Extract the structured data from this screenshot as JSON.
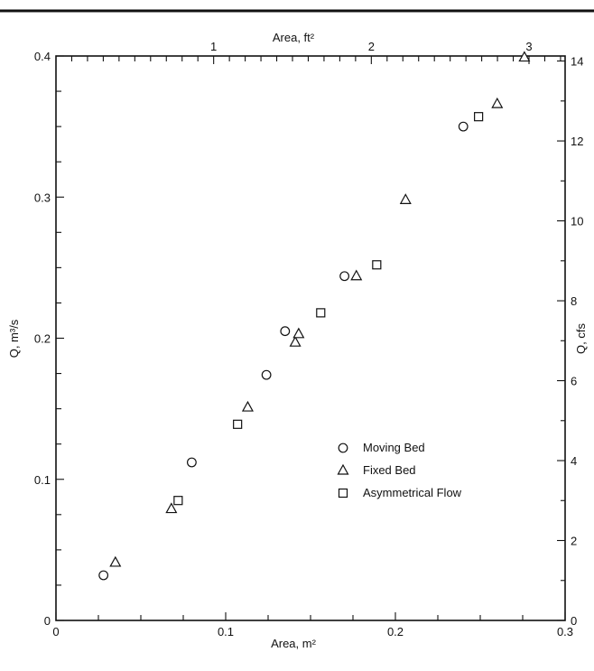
{
  "chart_data": {
    "type": "scatter",
    "xlabel": "Area, m²",
    "x2label": "Area, ft²",
    "ylabel": "Q, m³/s",
    "y2label": "Q, cfs",
    "xlim": [
      0,
      0.3
    ],
    "ylim": [
      0,
      0.4
    ],
    "x2lim_ft2": [
      0,
      3.229
    ],
    "y2lim_cfs": [
      0,
      14.126
    ],
    "x_ticks": [
      0,
      0.1,
      0.2,
      0.3
    ],
    "x_tick_labels": [
      "0",
      "0.1",
      "0.2",
      "0.3"
    ],
    "y_ticks": [
      0,
      0.1,
      0.2,
      0.3,
      0.4
    ],
    "y_tick_labels": [
      "0",
      "0.1",
      "0.2",
      "0.3",
      "0.4"
    ],
    "x2_ticks": [
      1,
      2,
      3
    ],
    "x2_tick_labels": [
      "1",
      "2",
      "3"
    ],
    "y2_ticks": [
      0,
      2,
      4,
      6,
      8,
      10,
      12,
      14
    ],
    "y2_tick_labels": [
      "0",
      "2",
      "4",
      "6",
      "8",
      "10",
      "12",
      "14"
    ],
    "grid": false,
    "legend_position": "lower-right",
    "series": [
      {
        "name": "Moving Bed",
        "marker": "circle",
        "points": [
          [
            0.028,
            0.032
          ],
          [
            0.08,
            0.112
          ],
          [
            0.124,
            0.174
          ],
          [
            0.135,
            0.205
          ],
          [
            0.17,
            0.244
          ],
          [
            0.24,
            0.35
          ]
        ]
      },
      {
        "name": "Fixed Bed",
        "marker": "triangle",
        "points": [
          [
            0.035,
            0.041
          ],
          [
            0.068,
            0.079
          ],
          [
            0.113,
            0.151
          ],
          [
            0.141,
            0.197
          ],
          [
            0.143,
            0.203
          ],
          [
            0.177,
            0.244
          ],
          [
            0.206,
            0.298
          ],
          [
            0.26,
            0.366
          ],
          [
            0.276,
            0.399
          ]
        ]
      },
      {
        "name": "Asymmetrical Flow",
        "marker": "square",
        "points": [
          [
            0.072,
            0.085
          ],
          [
            0.107,
            0.139
          ],
          [
            0.156,
            0.218
          ],
          [
            0.189,
            0.252
          ],
          [
            0.249,
            0.357
          ]
        ]
      }
    ]
  }
}
